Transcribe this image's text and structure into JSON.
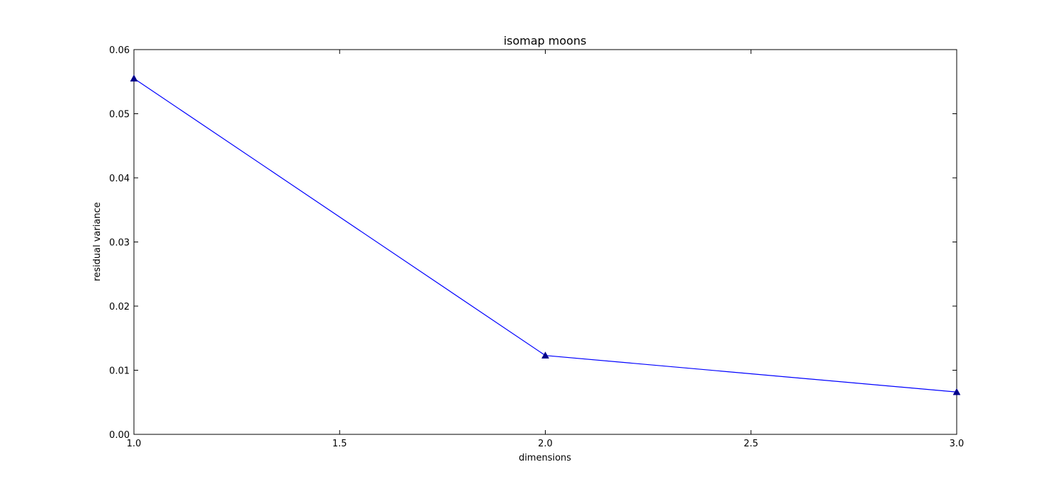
{
  "chart_data": {
    "type": "line",
    "title": "isomap moons",
    "xlabel": "dimensions",
    "ylabel": "residual variance",
    "xlim": [
      1.0,
      3.0
    ],
    "ylim": [
      0.0,
      0.06
    ],
    "xticks": [
      "1.0",
      "1.5",
      "2.0",
      "2.5",
      "3.0"
    ],
    "yticks": [
      "0.00",
      "0.01",
      "0.02",
      "0.03",
      "0.04",
      "0.05",
      "0.06"
    ],
    "grid": false,
    "marker": "triangle",
    "series": [
      {
        "x": [
          1,
          2,
          3
        ],
        "y": [
          0.0555,
          0.0123,
          0.0066
        ]
      }
    ],
    "colors": {
      "line": "#0000ff",
      "marker": "#00008b",
      "axes": "#000000"
    }
  }
}
